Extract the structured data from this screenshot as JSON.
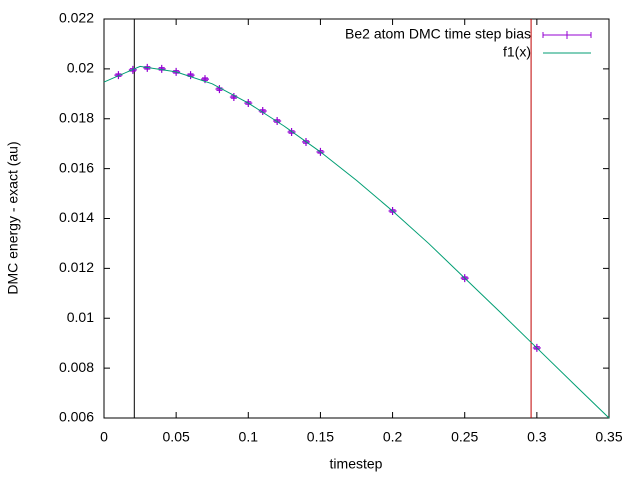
{
  "chart_data": {
    "type": "scatter",
    "xlabel": "timestep",
    "ylabel": "DMC energy - exact (au)",
    "xlim": [
      0,
      0.35
    ],
    "ylim": [
      0.006,
      0.022
    ],
    "xticks": [
      0,
      0.05,
      0.1,
      0.15,
      0.2,
      0.25,
      0.3,
      0.35
    ],
    "yticks": [
      0.006,
      0.008,
      0.01,
      0.012,
      0.014,
      0.016,
      0.018,
      0.02,
      0.022
    ],
    "legend": "top-right",
    "series": [
      {
        "name": "Be2 atom DMC time step bias",
        "color": "#9400d3",
        "style": "errorbars",
        "x": [
          0.01,
          0.02,
          0.03,
          0.04,
          0.05,
          0.06,
          0.07,
          0.08,
          0.09,
          0.1,
          0.11,
          0.12,
          0.13,
          0.14,
          0.15,
          0.2,
          0.25,
          0.3
        ],
        "values": [
          0.01975,
          0.01996,
          0.02004,
          0.02,
          0.01988,
          0.01975,
          0.01959,
          0.01919,
          0.01887,
          0.01863,
          0.01831,
          0.01791,
          0.01747,
          0.01707,
          0.01667,
          0.0143,
          0.01161,
          0.00881
        ],
        "errors": [
          5e-05,
          5e-05,
          5e-05,
          5e-05,
          5e-05,
          5e-05,
          5e-05,
          5e-05,
          5e-05,
          5e-05,
          5e-05,
          5e-05,
          5e-05,
          5e-05,
          5e-05,
          5e-05,
          5e-05,
          5e-05
        ]
      },
      {
        "name": "f1(x)",
        "color": "#009e73",
        "style": "line",
        "x": [
          0,
          0.025,
          0.05,
          0.075,
          0.1,
          0.125,
          0.15,
          0.175,
          0.2,
          0.225,
          0.25,
          0.275,
          0.3,
          0.325,
          0.35
        ],
        "values": [
          0.01947,
          0.0201,
          0.01988,
          0.0194,
          0.01863,
          0.0177,
          0.01667,
          0.01553,
          0.0143,
          0.013,
          0.01161,
          0.01022,
          0.00881,
          0.0074,
          0.006
        ]
      }
    ],
    "vlines": [
      {
        "x": 0.021,
        "color": "#000000"
      },
      {
        "x": 0.296,
        "color": "#c00000"
      }
    ]
  }
}
